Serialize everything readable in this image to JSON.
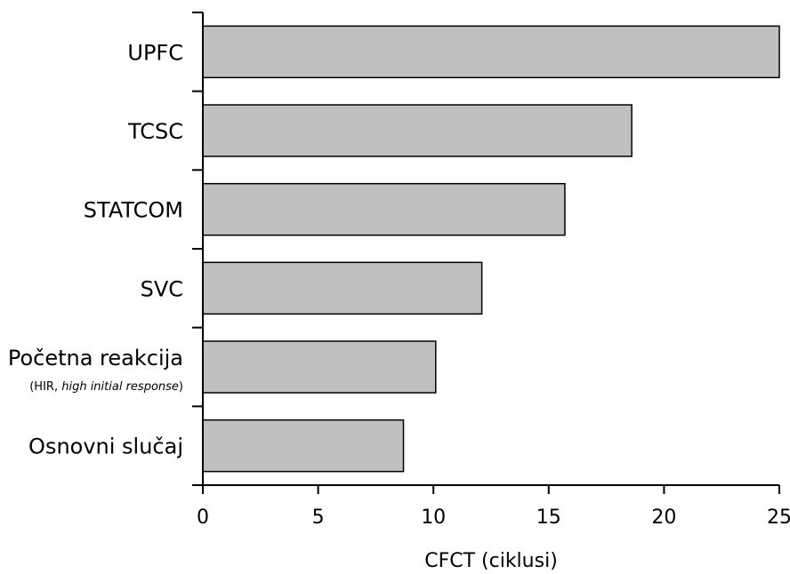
{
  "chart_data": {
    "type": "bar",
    "orientation": "horizontal",
    "title": "",
    "xlabel": "CFCT (ciklusi)",
    "ylabel": "",
    "xlim": [
      0,
      25
    ],
    "xticks": [
      "0",
      "5",
      "10",
      "15",
      "20",
      "25"
    ],
    "bar_color": "#c0c0c0",
    "bar_edge_color": "#000000",
    "grid": false,
    "categories": [
      {
        "label": "UPFC",
        "value": 25.0
      },
      {
        "label": "TCSC",
        "value": 18.6
      },
      {
        "label": "STATCOM",
        "value": 15.7
      },
      {
        "label": "SVC",
        "value": 12.1
      },
      {
        "label": "Početna reakcija",
        "sub_prefix": "(HIR, ",
        "sub_italic": "high initial response",
        "sub_suffix": ")",
        "value": 10.1
      },
      {
        "label": "Osnovni slučaj",
        "value": 8.7
      }
    ]
  }
}
